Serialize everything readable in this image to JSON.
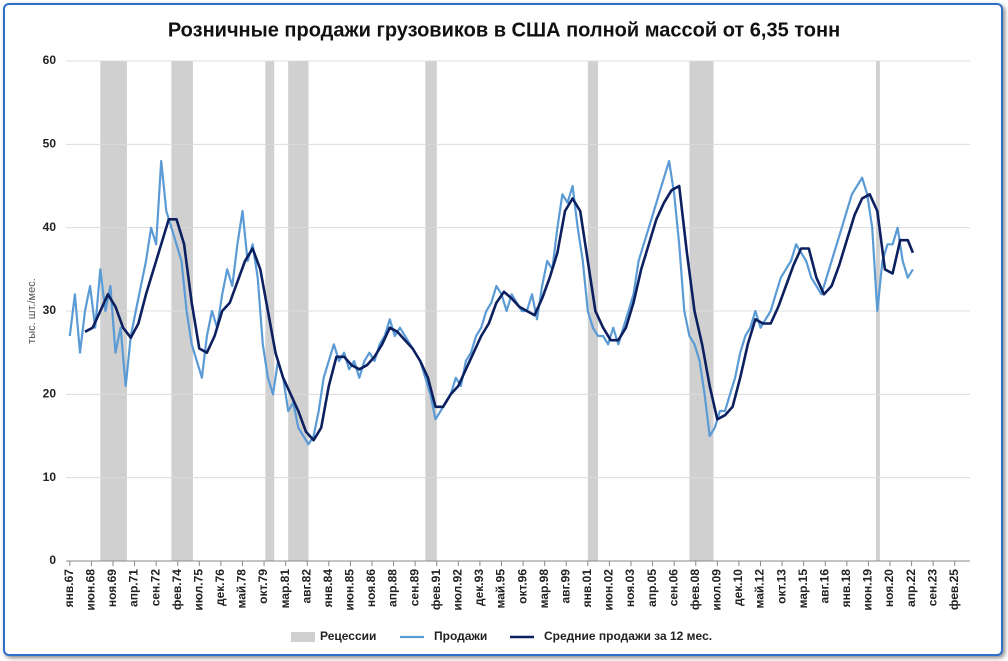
{
  "chart_data": {
    "type": "line",
    "title": "Розничные продажи грузовиков в США полной массой от 6,35 тонн",
    "y_label": "тыс. шт./мес.",
    "xlim": [
      "1966-10",
      "2026-02"
    ],
    "ylim": [
      0,
      60
    ],
    "yticks": [
      0,
      10,
      20,
      30,
      40,
      50,
      60
    ],
    "grid": true,
    "legend": "bottom",
    "xticks": [
      {
        "value": "1967-01",
        "label": "янв.67"
      },
      {
        "value": "1968-06",
        "label": "июн.68"
      },
      {
        "value": "1969-11",
        "label": "ноя.69"
      },
      {
        "value": "1971-04",
        "label": "апр.71"
      },
      {
        "value": "1972-09",
        "label": "сен.72"
      },
      {
        "value": "1974-02",
        "label": "фев.74"
      },
      {
        "value": "1975-07",
        "label": "июл.75"
      },
      {
        "value": "1976-12",
        "label": "дек.76"
      },
      {
        "value": "1978-05",
        "label": "май.78"
      },
      {
        "value": "1979-10",
        "label": "окт.79"
      },
      {
        "value": "1981-03",
        "label": "мар.81"
      },
      {
        "value": "1982-08",
        "label": "авг.82"
      },
      {
        "value": "1984-01",
        "label": "янв.84"
      },
      {
        "value": "1985-06",
        "label": "июн.85"
      },
      {
        "value": "1986-11",
        "label": "ноя.86"
      },
      {
        "value": "1988-04",
        "label": "апр.88"
      },
      {
        "value": "1989-09",
        "label": "сен.89"
      },
      {
        "value": "1991-02",
        "label": "фев.91"
      },
      {
        "value": "1992-07",
        "label": "июл.92"
      },
      {
        "value": "1993-12",
        "label": "дек.93"
      },
      {
        "value": "1995-05",
        "label": "май.95"
      },
      {
        "value": "1996-10",
        "label": "окт.96"
      },
      {
        "value": "1998-03",
        "label": "мар.98"
      },
      {
        "value": "1999-08",
        "label": "авг.99"
      },
      {
        "value": "2001-01",
        "label": "янв.01"
      },
      {
        "value": "2002-06",
        "label": "июн.02"
      },
      {
        "value": "2003-11",
        "label": "ноя.03"
      },
      {
        "value": "2005-04",
        "label": "апр.05"
      },
      {
        "value": "2006-09",
        "label": "сен.06"
      },
      {
        "value": "2008-02",
        "label": "фев.08"
      },
      {
        "value": "2009-07",
        "label": "июл.09"
      },
      {
        "value": "2010-12",
        "label": "дек.10"
      },
      {
        "value": "2012-05",
        "label": "май.12"
      },
      {
        "value": "2013-10",
        "label": "окт.13"
      },
      {
        "value": "2015-03",
        "label": "мар.15"
      },
      {
        "value": "2016-08",
        "label": "авг.16"
      },
      {
        "value": "2018-01",
        "label": "янв.18"
      },
      {
        "value": "2019-06",
        "label": "июн.19"
      },
      {
        "value": "2020-11",
        "label": "ноя.20"
      },
      {
        "value": "2022-04",
        "label": "апр.22"
      },
      {
        "value": "2023-09",
        "label": "сен.23"
      },
      {
        "value": "2025-02",
        "label": "фев.25"
      }
    ],
    "recessions": {
      "name": "Рецессии",
      "color": "#d0d0d0",
      "ranges": [
        [
          "1969-01",
          "1970-10"
        ],
        [
          "1973-09",
          "1975-02"
        ],
        [
          "1979-11",
          "1980-06"
        ],
        [
          "1981-05",
          "1982-09"
        ],
        [
          "1990-05",
          "1991-02"
        ],
        [
          "2001-01",
          "2001-09"
        ],
        [
          "2007-09",
          "2009-04"
        ],
        [
          "2019-12",
          "2020-03"
        ]
      ]
    },
    "series": [
      {
        "name": "Продажи",
        "color": "#5b9bd5",
        "width": 2.2,
        "x": [
          "1967-01",
          "1967-05",
          "1967-09",
          "1968-01",
          "1968-05",
          "1968-09",
          "1969-01",
          "1969-05",
          "1969-09",
          "1970-01",
          "1970-05",
          "1970-09",
          "1971-01",
          "1971-05",
          "1971-09",
          "1972-01",
          "1972-05",
          "1972-09",
          "1973-01",
          "1973-05",
          "1973-09",
          "1974-01",
          "1974-05",
          "1974-09",
          "1975-01",
          "1975-05",
          "1975-09",
          "1976-01",
          "1976-05",
          "1976-09",
          "1977-01",
          "1977-05",
          "1977-09",
          "1978-01",
          "1978-05",
          "1978-09",
          "1979-01",
          "1979-05",
          "1979-09",
          "1980-01",
          "1980-05",
          "1980-09",
          "1981-01",
          "1981-05",
          "1981-09",
          "1982-01",
          "1982-05",
          "1982-09",
          "1983-01",
          "1983-05",
          "1983-09",
          "1984-01",
          "1984-05",
          "1984-09",
          "1985-01",
          "1985-05",
          "1985-09",
          "1986-01",
          "1986-05",
          "1986-09",
          "1987-01",
          "1987-05",
          "1987-09",
          "1988-01",
          "1988-05",
          "1988-09",
          "1989-01",
          "1989-05",
          "1989-09",
          "1990-01",
          "1990-05",
          "1990-09",
          "1991-01",
          "1991-05",
          "1991-09",
          "1992-01",
          "1992-05",
          "1992-09",
          "1993-01",
          "1993-05",
          "1993-09",
          "1994-01",
          "1994-05",
          "1994-09",
          "1995-01",
          "1995-05",
          "1995-09",
          "1996-01",
          "1996-05",
          "1996-09",
          "1997-01",
          "1997-05",
          "1997-09",
          "1998-01",
          "1998-05",
          "1998-09",
          "1999-01",
          "1999-05",
          "1999-09",
          "2000-01",
          "2000-05",
          "2000-09",
          "2001-01",
          "2001-05",
          "2001-09",
          "2002-01",
          "2002-05",
          "2002-09",
          "2003-01",
          "2003-05",
          "2003-09",
          "2004-01",
          "2004-05",
          "2004-09",
          "2005-01",
          "2005-05",
          "2005-09",
          "2006-01",
          "2006-05",
          "2006-09",
          "2007-01",
          "2007-05",
          "2007-09",
          "2008-01",
          "2008-05",
          "2008-09",
          "2009-01",
          "2009-05",
          "2009-09",
          "2010-01",
          "2010-05",
          "2010-09",
          "2011-01",
          "2011-05",
          "2011-09",
          "2012-01",
          "2012-05",
          "2012-09",
          "2013-01",
          "2013-05",
          "2013-09",
          "2014-01",
          "2014-05",
          "2014-09",
          "2015-01",
          "2015-05",
          "2015-09",
          "2016-01",
          "2016-05",
          "2016-09",
          "2017-01",
          "2017-05",
          "2017-09",
          "2018-01",
          "2018-05",
          "2018-09",
          "2019-01",
          "2019-05",
          "2019-09",
          "2020-01",
          "2020-05",
          "2020-09",
          "2021-01",
          "2021-05",
          "2021-09",
          "2022-01",
          "2022-05"
        ],
        "values": [
          27,
          32,
          25,
          30,
          33,
          28,
          35,
          30,
          33,
          25,
          28,
          21,
          27,
          30,
          33,
          36,
          40,
          38,
          48,
          42,
          40,
          38,
          36,
          30,
          26,
          24,
          22,
          27,
          30,
          28,
          32,
          35,
          33,
          38,
          42,
          36,
          38,
          34,
          26,
          22,
          20,
          24,
          22,
          18,
          19,
          16,
          15,
          14,
          15,
          18,
          22,
          24,
          26,
          24,
          25,
          23,
          24,
          22,
          24,
          25,
          24,
          26,
          27,
          29,
          27,
          28,
          27,
          26,
          25,
          24,
          22,
          20,
          17,
          18,
          19,
          20,
          22,
          21,
          24,
          25,
          27,
          28,
          30,
          31,
          33,
          32,
          30,
          32,
          31,
          30,
          30,
          32,
          29,
          33,
          36,
          35,
          40,
          44,
          43,
          45,
          40,
          36,
          30,
          28,
          27,
          27,
          26,
          28,
          26,
          28,
          30,
          32,
          36,
          38,
          40,
          42,
          44,
          46,
          48,
          44,
          38,
          30,
          27,
          26,
          24,
          20,
          15,
          16,
          18,
          18,
          20,
          22,
          25,
          27,
          28,
          30,
          28,
          29,
          30,
          32,
          34,
          35,
          36,
          38,
          37,
          36,
          34,
          33,
          32,
          34,
          36,
          38,
          40,
          42,
          44,
          45,
          46,
          44,
          40,
          30,
          36,
          38,
          38,
          40,
          36,
          34,
          35
        ]
      },
      {
        "name": "Средние продажи за 12 мес.",
        "color": "#0c1f5e",
        "width": 2.6,
        "x": [
          "1968-01",
          "1968-07",
          "1969-01",
          "1969-07",
          "1970-01",
          "1970-07",
          "1971-01",
          "1971-07",
          "1972-01",
          "1972-07",
          "1973-01",
          "1973-07",
          "1974-01",
          "1974-07",
          "1975-01",
          "1975-07",
          "1976-01",
          "1976-07",
          "1977-01",
          "1977-07",
          "1978-01",
          "1978-07",
          "1979-01",
          "1979-07",
          "1980-01",
          "1980-07",
          "1981-01",
          "1981-07",
          "1982-01",
          "1982-07",
          "1983-01",
          "1983-07",
          "1984-01",
          "1984-07",
          "1985-01",
          "1985-07",
          "1986-01",
          "1986-07",
          "1987-01",
          "1987-07",
          "1988-01",
          "1988-07",
          "1989-01",
          "1989-07",
          "1990-01",
          "1990-07",
          "1991-01",
          "1991-07",
          "1992-01",
          "1992-07",
          "1993-01",
          "1993-07",
          "1994-01",
          "1994-07",
          "1995-01",
          "1995-07",
          "1996-01",
          "1996-07",
          "1997-01",
          "1997-07",
          "1998-01",
          "1998-07",
          "1999-01",
          "1999-07",
          "2000-01",
          "2000-07",
          "2001-01",
          "2001-07",
          "2002-01",
          "2002-07",
          "2003-01",
          "2003-07",
          "2004-01",
          "2004-07",
          "2005-01",
          "2005-07",
          "2006-01",
          "2006-07",
          "2007-01",
          "2007-07",
          "2008-01",
          "2008-07",
          "2009-01",
          "2009-07",
          "2010-01",
          "2010-07",
          "2011-01",
          "2011-07",
          "2012-01",
          "2012-07",
          "2013-01",
          "2013-07",
          "2014-01",
          "2014-07",
          "2015-01",
          "2015-07",
          "2016-01",
          "2016-07",
          "2017-01",
          "2017-07",
          "2018-01",
          "2018-07",
          "2019-01",
          "2019-07",
          "2020-01",
          "2020-07",
          "2021-01",
          "2021-07",
          "2022-01",
          "2022-05"
        ],
        "values": [
          27.5,
          28,
          30,
          32,
          30.5,
          28,
          26.8,
          28.5,
          32,
          35,
          38,
          41,
          41,
          38,
          31,
          25.5,
          25,
          27,
          30,
          31,
          33.5,
          36,
          37.5,
          35,
          30,
          25,
          22,
          20,
          18,
          15.5,
          14.5,
          16,
          21,
          24.5,
          24.5,
          23.5,
          23,
          23.5,
          24.5,
          26,
          28,
          27.5,
          26.5,
          25.5,
          24,
          22,
          18.5,
          18.5,
          20,
          21,
          23,
          25,
          27,
          28.5,
          31,
          32.3,
          31.5,
          30.5,
          30,
          29.5,
          31.5,
          34,
          37,
          42,
          43.5,
          42,
          36,
          30,
          28,
          26.5,
          26.5,
          28,
          31,
          35,
          38,
          41,
          43,
          44.5,
          45,
          37,
          30,
          26,
          21,
          17,
          17.5,
          18.5,
          22,
          26,
          29,
          28.5,
          28.5,
          30.5,
          33,
          35.5,
          37.5,
          37.5,
          34,
          32,
          33,
          35.5,
          38.5,
          41.5,
          43.5,
          44,
          42,
          35,
          34.5,
          38.5,
          38.5,
          37
        ]
      }
    ]
  }
}
